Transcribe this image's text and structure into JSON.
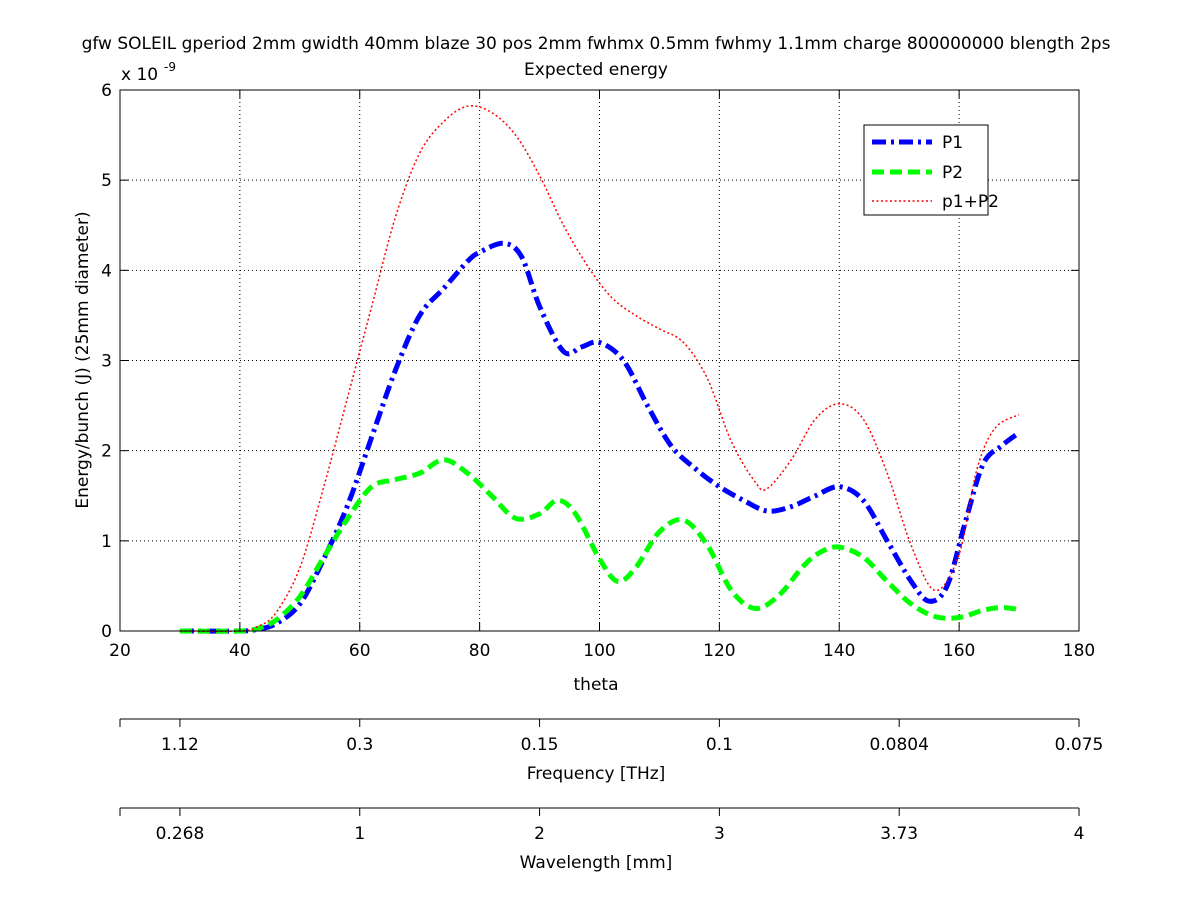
{
  "chart_data": {
    "type": "line",
    "title": "gfw SOLEIL gperiod 2mm gwidth 40mm blaze 30 pos 2mm fwhmx 0.5mm fwhmy 1.1mm charge 800000000 blength 2ps",
    "subtitle": "Expected energy",
    "xlabel": "theta",
    "ylabel": "Energy/bunch (J) (25mm diameter)",
    "y_exponent_label": "x 10",
    "y_exponent": "-9",
    "xlim": [
      20,
      180
    ],
    "ylim": [
      0,
      6
    ],
    "xticks": [
      20,
      40,
      60,
      80,
      100,
      120,
      140,
      160,
      180
    ],
    "xtick_labels": [
      "20",
      "40",
      "60",
      "80",
      "100",
      "120",
      "140",
      "160",
      "180"
    ],
    "yticks": [
      0,
      1,
      2,
      3,
      4,
      5,
      6
    ],
    "ytick_labels": [
      "0",
      "1",
      "2",
      "3",
      "4",
      "5",
      "6"
    ],
    "grid": true,
    "legend_position": "top-right",
    "series": [
      {
        "name": "P1",
        "color": "#0000ff",
        "style": "dash-dot",
        "x": [
          30,
          40,
          43,
          46,
          50,
          54,
          58,
          62,
          66,
          70,
          74,
          78,
          80,
          84,
          87,
          90,
          94,
          97,
          100,
          104,
          108,
          112,
          116,
          120,
          124,
          128,
          132,
          136,
          140,
          144,
          148,
          152,
          155,
          158,
          161,
          164,
          167,
          170
        ],
        "y": [
          0,
          0,
          0.02,
          0.08,
          0.3,
          0.8,
          1.4,
          2.15,
          2.9,
          3.5,
          3.8,
          4.1,
          4.2,
          4.3,
          4.15,
          3.6,
          3.1,
          3.15,
          3.2,
          3.0,
          2.5,
          2.05,
          1.8,
          1.6,
          1.45,
          1.33,
          1.38,
          1.5,
          1.6,
          1.45,
          1.0,
          0.55,
          0.33,
          0.5,
          1.2,
          1.85,
          2.05,
          2.2
        ]
      },
      {
        "name": "P2",
        "color": "#00ff00",
        "style": "dashed",
        "x": [
          30,
          40,
          43,
          46,
          50,
          54,
          58,
          62,
          66,
          70,
          74,
          78,
          82,
          86,
          90,
          93,
          96,
          100,
          103,
          106,
          110,
          114,
          118,
          122,
          126,
          130,
          134,
          137,
          140,
          144,
          148,
          152,
          156,
          160,
          164,
          167,
          170
        ],
        "y": [
          0,
          0,
          0.03,
          0.12,
          0.38,
          0.82,
          1.25,
          1.6,
          1.68,
          1.75,
          1.9,
          1.75,
          1.5,
          1.25,
          1.3,
          1.45,
          1.3,
          0.8,
          0.55,
          0.7,
          1.1,
          1.23,
          0.95,
          0.45,
          0.25,
          0.4,
          0.72,
          0.88,
          0.93,
          0.82,
          0.55,
          0.3,
          0.16,
          0.15,
          0.23,
          0.26,
          0.24
        ]
      },
      {
        "name": "p1+P2",
        "color": "#ff0000",
        "style": "dotted",
        "x": [
          30,
          40,
          43,
          46,
          50,
          54,
          58,
          62,
          66,
          70,
          74,
          78,
          82,
          86,
          90,
          94,
          98,
          102,
          106,
          110,
          114,
          118,
          122,
          126,
          128,
          132,
          136,
          140,
          144,
          148,
          152,
          156,
          160,
          163,
          166,
          170
        ],
        "y": [
          0,
          0,
          0.05,
          0.2,
          0.7,
          1.6,
          2.6,
          3.6,
          4.6,
          5.3,
          5.65,
          5.82,
          5.75,
          5.5,
          5.05,
          4.5,
          4.05,
          3.7,
          3.5,
          3.35,
          3.2,
          2.8,
          2.1,
          1.65,
          1.58,
          1.9,
          2.35,
          2.52,
          2.35,
          1.75,
          0.95,
          0.45,
          0.85,
          1.8,
          2.25,
          2.4
        ]
      }
    ],
    "secondary_axes": [
      {
        "label": "Frequency [THz]",
        "tick_labels": [
          "1.12",
          "0.3",
          "0.15",
          "0.1",
          "0.0804",
          "0.075"
        ],
        "tick_theta": [
          30,
          60,
          90,
          120,
          150,
          180
        ]
      },
      {
        "label": "Wavelength [mm]",
        "tick_labels": [
          "0.268",
          "1",
          "2",
          "3",
          "3.73",
          "4"
        ],
        "tick_theta": [
          30,
          60,
          90,
          120,
          150,
          180
        ]
      }
    ]
  }
}
